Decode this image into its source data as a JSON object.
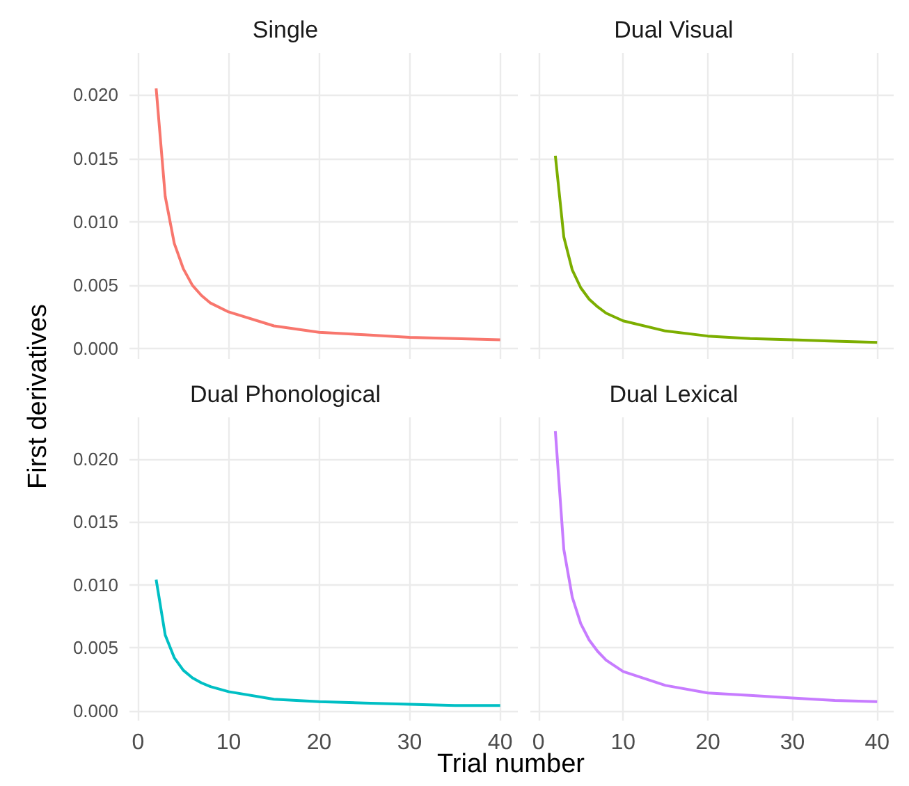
{
  "chart_data": [
    {
      "type": "line",
      "title": "Single",
      "ylabel": "First derivatives",
      "x": [
        2,
        3,
        4,
        5,
        6,
        7,
        8,
        10,
        15,
        20,
        25,
        30,
        35,
        40
      ],
      "series": [
        {
          "color": "#f8766d",
          "values": [
            0.0205,
            0.012,
            0.0083,
            0.0063,
            0.005,
            0.0042,
            0.0036,
            0.0029,
            0.0018,
            0.0013,
            0.0011,
            0.0009,
            0.0008,
            0.0007
          ]
        }
      ],
      "xlim": [
        -0.95,
        41.95
      ],
      "xticks": [
        0,
        10,
        20,
        30,
        40
      ],
      "ylim": [
        -0.0008,
        0.0233
      ],
      "yticks": [
        {
          "value": 0,
          "label": "0.000"
        },
        {
          "value": 0.005,
          "label": "0.005"
        },
        {
          "value": 0.01,
          "label": "0.010"
        },
        {
          "value": 0.015,
          "label": "0.015"
        },
        {
          "value": 0.02,
          "label": "0.020"
        }
      ],
      "grid": true,
      "tick_labels": "y"
    },
    {
      "type": "line",
      "title": "Dual Visual",
      "x": [
        2,
        3,
        4,
        5,
        6,
        7,
        8,
        10,
        15,
        20,
        25,
        30,
        35,
        40
      ],
      "series": [
        {
          "color": "#7cae00",
          "values": [
            0.0152,
            0.0088,
            0.0062,
            0.0048,
            0.0039,
            0.0033,
            0.0028,
            0.0022,
            0.0014,
            0.001,
            0.0008,
            0.0007,
            0.0006,
            0.0005
          ]
        }
      ],
      "xlim": [
        -0.95,
        41.95
      ],
      "xticks": [
        0,
        10,
        20,
        30,
        40
      ],
      "ylim": [
        -0.0008,
        0.0233
      ],
      "yticks": [
        0,
        0.005,
        0.01,
        0.015,
        0.02
      ],
      "grid": true,
      "tick_labels": false
    },
    {
      "type": "line",
      "title": "Dual Phonological",
      "xlabel": "Trial number",
      "x": [
        2,
        3,
        4,
        5,
        6,
        7,
        8,
        10,
        15,
        20,
        25,
        30,
        35,
        40
      ],
      "series": [
        {
          "color": "#00bfc4",
          "values": [
            0.0104,
            0.006,
            0.0042,
            0.0032,
            0.0026,
            0.0022,
            0.0019,
            0.0015,
            0.0009,
            0.0007,
            0.0006,
            0.0005,
            0.0004,
            0.0004
          ]
        }
      ],
      "xlim": [
        -0.95,
        41.95
      ],
      "xticks": [
        0,
        10,
        20,
        30,
        40
      ],
      "ylim": [
        -0.0008,
        0.0233
      ],
      "yticks": [
        {
          "value": 0,
          "label": "0.000"
        },
        {
          "value": 0.005,
          "label": "0.005"
        },
        {
          "value": 0.01,
          "label": "0.010"
        },
        {
          "value": 0.015,
          "label": "0.015"
        },
        {
          "value": 0.02,
          "label": "0.020"
        }
      ],
      "grid": true
    },
    {
      "type": "line",
      "title": "Dual Lexical",
      "x": [
        2,
        3,
        4,
        5,
        6,
        7,
        8,
        10,
        15,
        20,
        25,
        30,
        35,
        40
      ],
      "series": [
        {
          "color": "#c77cff",
          "values": [
            0.0222,
            0.0128,
            0.009,
            0.0069,
            0.0056,
            0.0047,
            0.004,
            0.0031,
            0.002,
            0.0014,
            0.0012,
            0.001,
            0.0008,
            0.0007
          ]
        }
      ],
      "xlim": [
        -0.95,
        41.95
      ],
      "xticks": [
        0,
        10,
        20,
        30,
        40
      ],
      "ylim": [
        -0.0008,
        0.0233
      ],
      "yticks": [
        0,
        0.005,
        0.01,
        0.015,
        0.02
      ],
      "grid": true,
      "tick_labels": "x"
    }
  ]
}
